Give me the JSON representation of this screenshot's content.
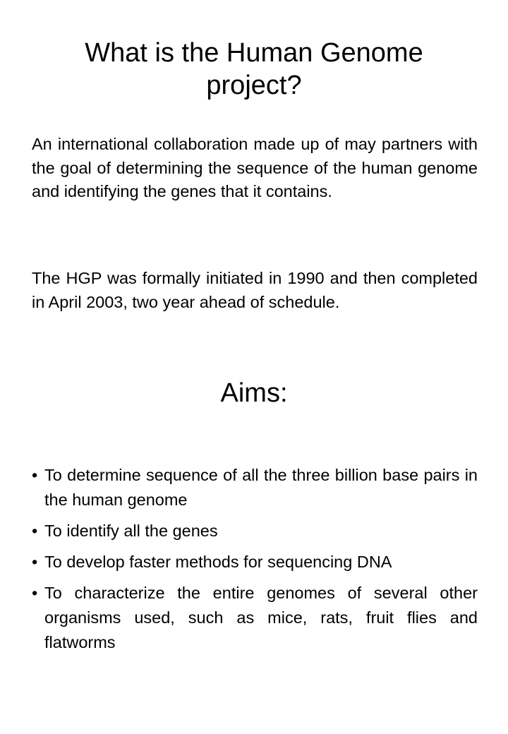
{
  "title": "What is the Human Genome project?",
  "paragraphs": [
    "An international collaboration made up of may partners with the goal of determining the sequence of the human genome and identifying the genes that it contains.",
    "The HGP was formally initiated in 1990 and then completed in April 2003, two year ahead of schedule."
  ],
  "aims": {
    "heading": "Aims:",
    "bullet": "•",
    "items": [
      "To determine sequence of all the three billion base pairs in the human genome",
      "To identify all the genes",
      "To develop faster methods for sequencing DNA",
      "To characterize the entire genomes of several other organisms used, such as mice, rats, fruit flies and flatworms"
    ]
  }
}
